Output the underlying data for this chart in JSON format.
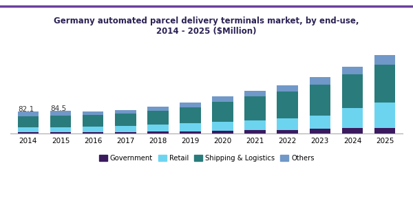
{
  "years": [
    2014,
    2015,
    2016,
    2017,
    2018,
    2019,
    2020,
    2021,
    2022,
    2023,
    2024,
    2025
  ],
  "government": [
    5.5,
    6.0,
    5.8,
    6.5,
    7.5,
    8.5,
    10.0,
    12.0,
    14.0,
    17.0,
    20.0,
    22.0
  ],
  "retail": [
    18.0,
    18.5,
    20.0,
    22.0,
    26.0,
    30.0,
    34.0,
    38.0,
    42.0,
    50.0,
    75.0,
    95.0
  ],
  "shipping": [
    42.0,
    43.0,
    44.0,
    45.0,
    52.0,
    60.0,
    75.0,
    88.0,
    100.0,
    115.0,
    125.0,
    140.0
  ],
  "others": [
    16.6,
    17.0,
    13.5,
    13.5,
    15.0,
    17.5,
    19.0,
    22.0,
    25.0,
    28.0,
    30.0,
    35.0
  ],
  "colors": {
    "government": "#3b1a5e",
    "retail": "#6dd4f0",
    "shipping": "#2a7b7b",
    "others": "#7098c8"
  },
  "labels": [
    "Government",
    "Retail",
    "Shipping & Logistics",
    "Others"
  ],
  "title": "Germany automated parcel delivery terminals market, by end-use,\n2014 - 2025 ($Million)",
  "annotations": [
    {
      "year": 2014,
      "text": "82.1"
    },
    {
      "year": 2015,
      "text": "84.5"
    }
  ],
  "title_color": "#2c2254",
  "bar_width": 0.65
}
